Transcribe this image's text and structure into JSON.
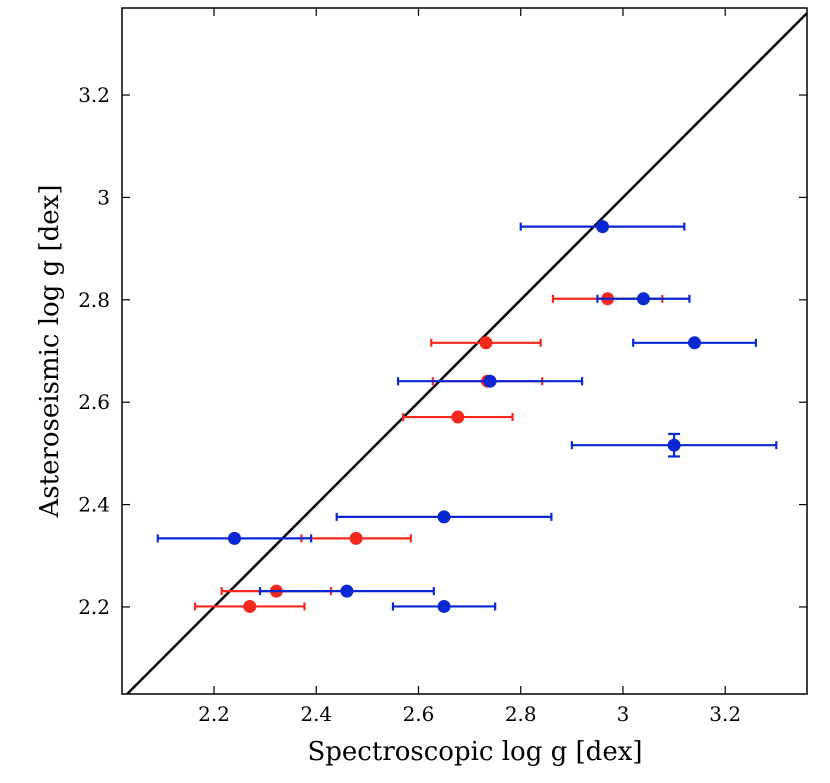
{
  "chart_data": {
    "type": "scatter",
    "title": "",
    "xlabel": "Spectroscopic log g [dex]",
    "ylabel": "Asteroseismic log g [dex]",
    "xlim": [
      2.02,
      3.36
    ],
    "ylim": [
      2.03,
      3.37
    ],
    "x_ticks": [
      2.2,
      2.4,
      2.6,
      2.8,
      3.0,
      3.2
    ],
    "x_tick_labels": [
      "2.2",
      "2.4",
      "2.6",
      "2.8",
      "3",
      "3.2"
    ],
    "y_ticks": [
      2.2,
      2.4,
      2.6,
      2.8,
      3.0,
      3.2
    ],
    "y_tick_labels": [
      "2.2",
      "2.4",
      "2.6",
      "2.8",
      "3",
      "3.2"
    ],
    "grid": false,
    "reference_line": "one-to-one",
    "series": [
      {
        "name": "blue",
        "color": "#0a28d2",
        "points": [
          {
            "x": 2.96,
            "y": 2.943,
            "xerr": 0.16
          },
          {
            "x": 3.04,
            "y": 2.802,
            "xerr": 0.09
          },
          {
            "x": 3.14,
            "y": 2.716,
            "xerr": 0.12
          },
          {
            "x": 2.74,
            "y": 2.641,
            "xerr": 0.18
          },
          {
            "x": 3.1,
            "y": 2.516,
            "xerr": 0.2,
            "yerr": 0.022
          },
          {
            "x": 2.65,
            "y": 2.376,
            "xerr": 0.21
          },
          {
            "x": 2.24,
            "y": 2.334,
            "xerr": 0.15
          },
          {
            "x": 2.46,
            "y": 2.231,
            "xerr": 0.17
          },
          {
            "x": 2.65,
            "y": 2.201,
            "xerr": 0.1
          }
        ]
      },
      {
        "name": "red",
        "color": "#f5281e",
        "points": [
          {
            "x": 2.97,
            "y": 2.802,
            "xerr": 0.107
          },
          {
            "x": 2.732,
            "y": 2.716,
            "xerr": 0.107
          },
          {
            "x": 2.735,
            "y": 2.641,
            "xerr": 0.107
          },
          {
            "x": 2.677,
            "y": 2.571,
            "xerr": 0.107
          },
          {
            "x": 2.478,
            "y": 2.334,
            "xerr": 0.107
          },
          {
            "x": 2.322,
            "y": 2.231,
            "xerr": 0.107
          },
          {
            "x": 2.27,
            "y": 2.201,
            "xerr": 0.107
          }
        ]
      }
    ]
  }
}
